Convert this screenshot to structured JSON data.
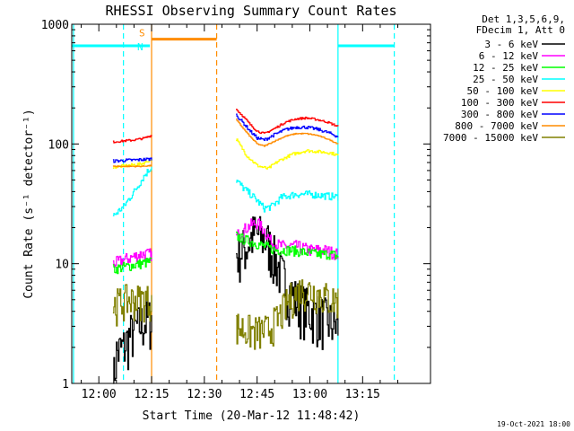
{
  "chart_data": {
    "type": "line",
    "title": "RHESSI Observing Summary Count Rates",
    "xlabel": "Start Time (20-Mar-12 11:48:42)",
    "ylabel": "Count Rate (s⁻¹ detector⁻¹)",
    "yscale": "log",
    "ylim": [
      1,
      1000
    ],
    "xlim_min": [
      -7.7,
      94.3
    ],
    "y_ticks": [
      {
        "value": 1,
        "label": "1"
      },
      {
        "value": 10,
        "label": "10"
      },
      {
        "value": 100,
        "label": "100"
      },
      {
        "value": 1000,
        "label": "1000"
      }
    ],
    "x_ticks": [
      {
        "value": 0,
        "label": "12:00"
      },
      {
        "value": 15,
        "label": "12:15"
      },
      {
        "value": 30,
        "label": "12:30"
      },
      {
        "value": 45,
        "label": "12:45"
      },
      {
        "value": 60,
        "label": "13:00"
      },
      {
        "value": 75,
        "label": "13:15"
      }
    ],
    "legend_header": [
      "Det 1,3,5,6,9,",
      "FDecim 1, Att 0"
    ],
    "legend_position": "right",
    "footer_date": "19-Oct-2021 18:00",
    "segments": [
      [
        4,
        15
      ],
      [
        39,
        68
      ]
    ],
    "series": [
      {
        "name": "3 - 6 keV",
        "color": "#000000",
        "noise": 0.5,
        "values": [
          [
            4,
            1
          ],
          [
            5,
            1.8
          ],
          [
            7,
            2
          ],
          [
            9,
            2.6
          ],
          [
            11,
            3
          ],
          [
            13,
            3.3
          ],
          [
            15,
            3.5
          ],
          [
            39,
            12
          ],
          [
            42,
            14
          ],
          [
            44,
            18
          ],
          [
            46,
            17
          ],
          [
            48,
            15
          ],
          [
            50,
            11
          ],
          [
            52,
            8
          ],
          [
            54,
            6
          ],
          [
            56,
            5
          ],
          [
            58,
            4.5
          ],
          [
            60,
            4
          ],
          [
            62,
            3.8
          ],
          [
            64,
            3.5
          ],
          [
            66,
            3.2
          ],
          [
            68,
            3
          ]
        ]
      },
      {
        "name": "6 - 12 keV",
        "color": "#ff00ff",
        "noise": 0.12,
        "values": [
          [
            4,
            10
          ],
          [
            8,
            11
          ],
          [
            12,
            12
          ],
          [
            15,
            12
          ],
          [
            39,
            17
          ],
          [
            41,
            19
          ],
          [
            43,
            21
          ],
          [
            45,
            22
          ],
          [
            47,
            19
          ],
          [
            49,
            15
          ],
          [
            52,
            14
          ],
          [
            56,
            14
          ],
          [
            60,
            13
          ],
          [
            64,
            13
          ],
          [
            68,
            12
          ]
        ]
      },
      {
        "name": "12 - 25 keV",
        "color": "#00ff00",
        "noise": 0.1,
        "values": [
          [
            4,
            9
          ],
          [
            8,
            9.5
          ],
          [
            12,
            10
          ],
          [
            15,
            10.5
          ],
          [
            39,
            17
          ],
          [
            41,
            16
          ],
          [
            44,
            15
          ],
          [
            47,
            14
          ],
          [
            50,
            13
          ],
          [
            54,
            13
          ],
          [
            58,
            12.5
          ],
          [
            62,
            12
          ],
          [
            66,
            12
          ],
          [
            68,
            11.5
          ]
        ]
      },
      {
        "name": "25 - 50 keV",
        "color": "#00ffff",
        "noise": 0.07,
        "values": [
          [
            4,
            25
          ],
          [
            7,
            30
          ],
          [
            10,
            40
          ],
          [
            13,
            55
          ],
          [
            15,
            65
          ],
          [
            39,
            50
          ],
          [
            41,
            43
          ],
          [
            44,
            36
          ],
          [
            47,
            29
          ],
          [
            49,
            30
          ],
          [
            52,
            36
          ],
          [
            56,
            38
          ],
          [
            60,
            38
          ],
          [
            64,
            37
          ],
          [
            68,
            36
          ]
        ]
      },
      {
        "name": "50 - 100 keV",
        "color": "#ffff00",
        "noise": 0.03,
        "values": [
          [
            4,
            64
          ],
          [
            8,
            66
          ],
          [
            12,
            68
          ],
          [
            15,
            75
          ],
          [
            39,
            110
          ],
          [
            42,
            80
          ],
          [
            45,
            66
          ],
          [
            48,
            62
          ],
          [
            51,
            72
          ],
          [
            55,
            82
          ],
          [
            59,
            88
          ],
          [
            63,
            86
          ],
          [
            66,
            84
          ],
          [
            68,
            80
          ]
        ]
      },
      {
        "name": "100 - 300 keV",
        "color": "#ff0000",
        "noise": 0.02,
        "values": [
          [
            4,
            104
          ],
          [
            7,
            106
          ],
          [
            10,
            108
          ],
          [
            13,
            112
          ],
          [
            15,
            118
          ],
          [
            39,
            195
          ],
          [
            41,
            170
          ],
          [
            43,
            145
          ],
          [
            45,
            128
          ],
          [
            47,
            122
          ],
          [
            50,
            135
          ],
          [
            53,
            152
          ],
          [
            56,
            162
          ],
          [
            59,
            165
          ],
          [
            62,
            160
          ],
          [
            65,
            152
          ],
          [
            68,
            140
          ]
        ]
      },
      {
        "name": "300 - 800 keV",
        "color": "#0000ff",
        "noise": 0.03,
        "values": [
          [
            4,
            72
          ],
          [
            8,
            73
          ],
          [
            12,
            74
          ],
          [
            15,
            75
          ],
          [
            39,
            175
          ],
          [
            41,
            150
          ],
          [
            43,
            128
          ],
          [
            45,
            112
          ],
          [
            47,
            108
          ],
          [
            50,
            120
          ],
          [
            53,
            132
          ],
          [
            56,
            138
          ],
          [
            59,
            138
          ],
          [
            62,
            133
          ],
          [
            65,
            125
          ],
          [
            68,
            115
          ]
        ]
      },
      {
        "name": "800 - 7000 keV",
        "color": "#ff8c00",
        "noise": 0.01,
        "values": [
          [
            4,
            65
          ],
          [
            8,
            65
          ],
          [
            12,
            65
          ],
          [
            15,
            66
          ],
          [
            39,
            160
          ],
          [
            41,
            135
          ],
          [
            43,
            115
          ],
          [
            45,
            100
          ],
          [
            47,
            96
          ],
          [
            50,
            106
          ],
          [
            53,
            116
          ],
          [
            56,
            122
          ],
          [
            59,
            122
          ],
          [
            62,
            118
          ],
          [
            65,
            110
          ],
          [
            68,
            100
          ]
        ]
      },
      {
        "name": "7000 - 15000 keV",
        "color": "#808000",
        "noise": 0.35,
        "values": [
          [
            4,
            4.5
          ],
          [
            8,
            5
          ],
          [
            12,
            5
          ],
          [
            15,
            5
          ],
          [
            39,
            3
          ],
          [
            42,
            2.8
          ],
          [
            45,
            2.7
          ],
          [
            48,
            2.8
          ],
          [
            51,
            3.5
          ],
          [
            54,
            5
          ],
          [
            57,
            6
          ],
          [
            60,
            6
          ],
          [
            63,
            5.5
          ],
          [
            66,
            5
          ],
          [
            68,
            5
          ]
        ]
      }
    ],
    "flag_bars": [
      {
        "color": "#00ffff",
        "label": "N",
        "value": 660,
        "x1": -7.7,
        "x2": 14.5
      },
      {
        "color": "#00ffff",
        "label": "",
        "value": 660,
        "x1": 68,
        "x2": 84
      },
      {
        "color": "#ff8c00",
        "label": "S",
        "value": 750,
        "x1": 15,
        "x2": 33.5
      }
    ],
    "markers": [
      {
        "color": "#00ffff",
        "style": "solid",
        "x": -7.2
      },
      {
        "color": "#00ffff",
        "style": "dashed",
        "x": 7
      },
      {
        "color": "#ff8c00",
        "style": "solid",
        "x": 15
      },
      {
        "color": "#ff8c00",
        "style": "dashed",
        "x": 33.5
      },
      {
        "color": "#00ffff",
        "style": "solid",
        "x": 68
      },
      {
        "color": "#00ffff",
        "style": "dashed",
        "x": 84
      }
    ]
  }
}
